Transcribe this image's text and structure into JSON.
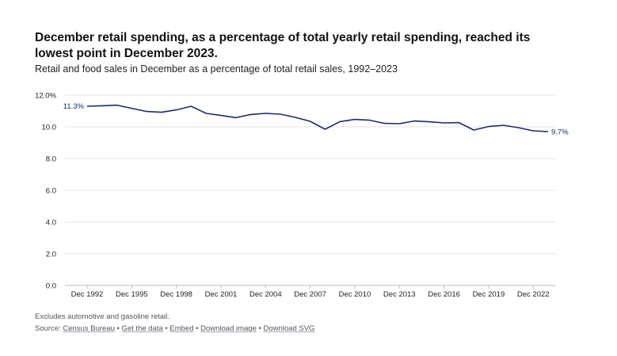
{
  "header": {
    "title": "December retail spending, as a percentage of total yearly retail spending, reached its lowest point in December 2023.",
    "subtitle": "Retail and food sales in December as a percentage of total retail sales, 1992–2023"
  },
  "footer": {
    "note": "Excludes automotive and gasoline retail.",
    "source_prefix": "Source:",
    "source_link": "Census Bureau",
    "separator": "•",
    "link_get_data": "Get the data",
    "link_embed": "Embed",
    "link_download_image": "Download image",
    "link_download_svg": "Download SVG"
  },
  "chart_data": {
    "type": "line",
    "title": "",
    "xlabel": "",
    "ylabel": "",
    "line_color": "#1f2a6b",
    "grid": true,
    "ylim": [
      0,
      12
    ],
    "yticks": [
      "0.0",
      "2.0",
      "4.0",
      "6.0",
      "8.0",
      "10.0",
      "12.0%"
    ],
    "xtick_labels": [
      "Dec 1992",
      "Dec 1995",
      "Dec 1998",
      "Dec 2001",
      "Dec 2004",
      "Dec 2007",
      "Dec 2010",
      "Dec 2013",
      "Dec 2016",
      "Dec 2019",
      "Dec 2022"
    ],
    "first_label": "11.3%",
    "last_label": "9.7%",
    "series": [
      {
        "x": [
          1992,
          1993,
          1994,
          1995,
          1996,
          1997,
          1998,
          1999,
          2000,
          2001,
          2002,
          2003,
          2004,
          2005,
          2006,
          2007,
          2008,
          2009,
          2010,
          2011,
          2012,
          2013,
          2014,
          2015,
          2016,
          2017,
          2018,
          2019,
          2020,
          2021,
          2022,
          2023
        ],
        "values": [
          11.3,
          11.33,
          11.37,
          11.17,
          10.97,
          10.92,
          11.07,
          11.3,
          10.85,
          10.72,
          10.58,
          10.78,
          10.85,
          10.8,
          10.6,
          10.35,
          9.85,
          10.33,
          10.47,
          10.42,
          10.22,
          10.2,
          10.37,
          10.32,
          10.25,
          10.27,
          9.8,
          10.02,
          10.1,
          9.95,
          9.75,
          9.7
        ]
      }
    ]
  }
}
